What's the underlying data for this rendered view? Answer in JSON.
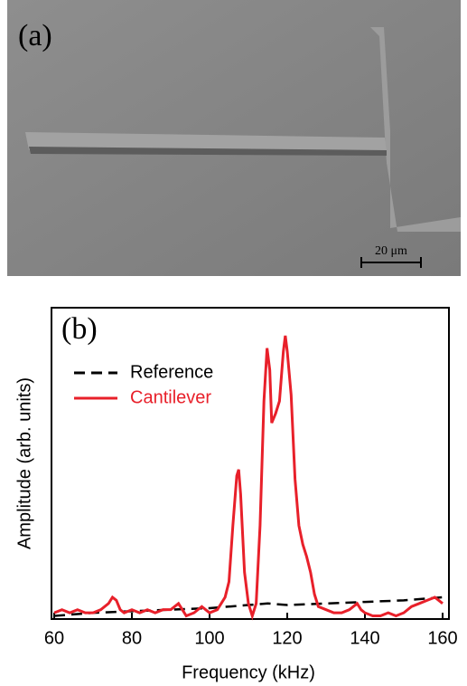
{
  "image_panel": {
    "label": "(a)",
    "scale_bar": "20 μm"
  },
  "chart_data": {
    "type": "line",
    "panel_label": "(b)",
    "xlabel": "Frequency (kHz)",
    "ylabel": "Amplitude (arb. units)",
    "xlim": [
      60,
      160
    ],
    "xticks": [
      60,
      80,
      100,
      120,
      140,
      160
    ],
    "ylim": [
      0,
      1
    ],
    "legend": "top-left",
    "series": [
      {
        "name": "Reference",
        "color": "#000000",
        "dash": true,
        "x": [
          60,
          70,
          80,
          90,
          100,
          110,
          115,
          120,
          130,
          140,
          150,
          160
        ],
        "values": [
          0.01,
          0.02,
          0.025,
          0.03,
          0.035,
          0.045,
          0.05,
          0.045,
          0.05,
          0.055,
          0.06,
          0.07
        ]
      },
      {
        "name": "Cantilever",
        "color": "#e8202a",
        "dash": false,
        "x": [
          60,
          62,
          64,
          66,
          68,
          70,
          72,
          74,
          75,
          76,
          77,
          78,
          80,
          82,
          84,
          86,
          88,
          90,
          92,
          93,
          94,
          96,
          98,
          99,
          100,
          102,
          103,
          104,
          105,
          106,
          107,
          107.5,
          108,
          109,
          110,
          111,
          112,
          113,
          114,
          114.8,
          115.5,
          116,
          117,
          118,
          119,
          119.5,
          120,
          121,
          122,
          123,
          124,
          125,
          126,
          127,
          128,
          130,
          132,
          134,
          136,
          138,
          139,
          140,
          142,
          144,
          146,
          148,
          150,
          152,
          154,
          156,
          158,
          160
        ],
        "values": [
          0.02,
          0.03,
          0.02,
          0.03,
          0.02,
          0.02,
          0.03,
          0.05,
          0.07,
          0.06,
          0.03,
          0.02,
          0.03,
          0.02,
          0.03,
          0.02,
          0.03,
          0.03,
          0.05,
          0.03,
          0.01,
          0.02,
          0.04,
          0.03,
          0.02,
          0.03,
          0.05,
          0.07,
          0.12,
          0.3,
          0.46,
          0.48,
          0.4,
          0.15,
          0.05,
          0.01,
          0.05,
          0.3,
          0.7,
          0.87,
          0.8,
          0.63,
          0.66,
          0.7,
          0.86,
          0.91,
          0.86,
          0.72,
          0.45,
          0.3,
          0.24,
          0.2,
          0.15,
          0.08,
          0.04,
          0.03,
          0.02,
          0.02,
          0.03,
          0.05,
          0.03,
          0.02,
          0.01,
          0.01,
          0.02,
          0.01,
          0.02,
          0.04,
          0.05,
          0.06,
          0.07,
          0.05
        ]
      }
    ]
  }
}
